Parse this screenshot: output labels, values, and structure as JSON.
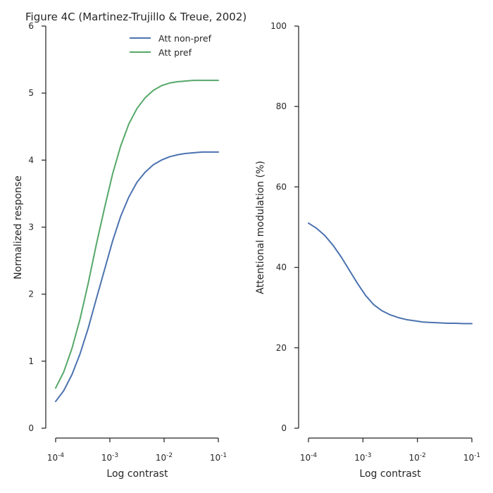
{
  "colors": {
    "blue": "#4c72b0",
    "green": "#55a868",
    "axis": "#262626"
  },
  "chart_data": [
    {
      "type": "line",
      "title": "Figure 4C (Martinez-Trujillo & Treue, 2002)",
      "xlabel": "Log contrast",
      "ylabel": "Normalized response",
      "xscale": "log",
      "xlim": [
        0.0001,
        0.1
      ],
      "ylim": [
        0,
        6
      ],
      "xticks": [
        {
          "value": 0.0001,
          "base": "10",
          "exp": "-4"
        },
        {
          "value": 0.001,
          "base": "10",
          "exp": "-3"
        },
        {
          "value": 0.01,
          "base": "10",
          "exp": "-2"
        },
        {
          "value": 0.1,
          "base": "10",
          "exp": "-1"
        }
      ],
      "yticks": [
        "0",
        "1",
        "2",
        "3",
        "4",
        "5",
        "6"
      ],
      "legend": "top-right",
      "grid": false,
      "x": [
        0.0001,
        0.000141,
        0.0002,
        0.000282,
        0.000398,
        0.000562,
        0.000794,
        0.00112,
        0.00158,
        0.00224,
        0.00316,
        0.00447,
        0.00631,
        0.00891,
        0.0126,
        0.0178,
        0.0251,
        0.0355,
        0.0501,
        0.0708,
        0.1
      ],
      "series": [
        {
          "name": "Att non-pref",
          "color": "#4c72b0",
          "values": [
            0.4,
            0.56,
            0.8,
            1.11,
            1.49,
            1.93,
            2.36,
            2.79,
            3.16,
            3.45,
            3.67,
            3.82,
            3.93,
            4.0,
            4.05,
            4.08,
            4.1,
            4.11,
            4.12,
            4.12,
            4.12
          ]
        },
        {
          "name": "Att pref",
          "color": "#55a868",
          "values": [
            0.6,
            0.84,
            1.19,
            1.63,
            2.16,
            2.74,
            3.28,
            3.79,
            4.21,
            4.54,
            4.77,
            4.93,
            5.04,
            5.11,
            5.15,
            5.17,
            5.18,
            5.19,
            5.19,
            5.19,
            5.19
          ]
        }
      ]
    },
    {
      "type": "line",
      "xlabel": "Log contrast",
      "ylabel": "Attentional modulation (%)",
      "xscale": "log",
      "xlim": [
        0.0001,
        0.1
      ],
      "ylim": [
        0,
        100
      ],
      "xticks": [
        {
          "value": 0.0001,
          "base": "10",
          "exp": "-4"
        },
        {
          "value": 0.001,
          "base": "10",
          "exp": "-3"
        },
        {
          "value": 0.01,
          "base": "10",
          "exp": "-2"
        },
        {
          "value": 0.1,
          "base": "10",
          "exp": "-1"
        }
      ],
      "yticks": [
        "0",
        "20",
        "40",
        "60",
        "80",
        "100"
      ],
      "grid": false,
      "x": [
        0.0001,
        0.000141,
        0.0002,
        0.000282,
        0.000398,
        0.000562,
        0.000794,
        0.00112,
        0.00158,
        0.00224,
        0.00316,
        0.00447,
        0.00631,
        0.00891,
        0.0126,
        0.0178,
        0.0251,
        0.0355,
        0.0501,
        0.0708,
        0.1
      ],
      "series": [
        {
          "color": "#4c72b0",
          "values": [
            51.0,
            49.7,
            47.9,
            45.5,
            42.6,
            39.3,
            36.0,
            33.0,
            30.7,
            29.2,
            28.2,
            27.5,
            27.0,
            26.7,
            26.4,
            26.3,
            26.2,
            26.1,
            26.1,
            26.0,
            26.0
          ]
        }
      ]
    }
  ]
}
